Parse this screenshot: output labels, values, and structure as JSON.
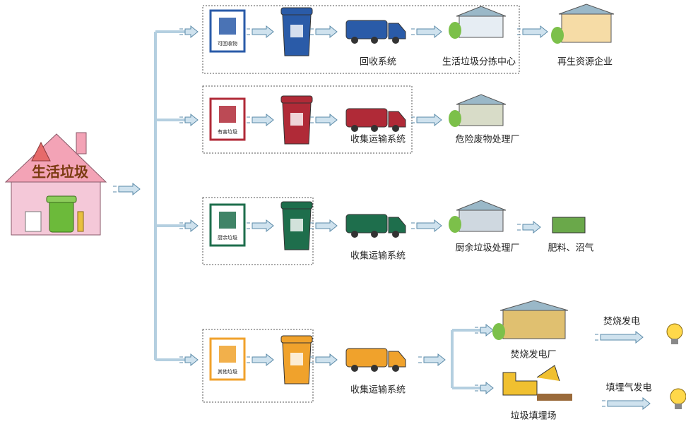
{
  "source": {
    "label": "生活垃圾"
  },
  "streams": [
    {
      "sign": "可回收物",
      "transport": "回收系统",
      "stages": [
        "生活垃圾分拣中心",
        "再生资源企业"
      ]
    },
    {
      "sign": "有害垃圾",
      "transport": "收集运输系统",
      "stages": [
        "危险废物处理厂"
      ]
    },
    {
      "sign": "厨余垃圾",
      "transport": "收集运输系统",
      "stages": [
        "厨余垃圾处理厂",
        "肥料、沼气"
      ]
    },
    {
      "sign": "其他垃圾",
      "transport": "收集运输系统",
      "branches": [
        {
          "facility": "焚烧发电厂",
          "output": "焚烧发电"
        },
        {
          "facility": "垃圾填埋场",
          "output": "填埋气发电"
        }
      ]
    }
  ]
}
